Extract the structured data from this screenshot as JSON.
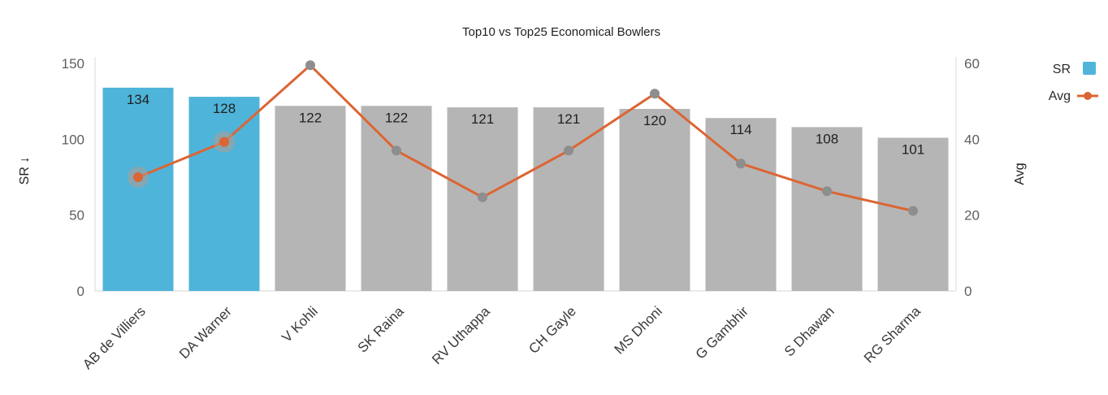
{
  "chart_data": {
    "type": "bar",
    "title": "Top10 vs Top25 Economical Bowlers",
    "categories": [
      "AB de Villiers",
      "DA Warner",
      "V Kohli",
      "SK Raina",
      "RV Uthappa",
      "CH Gayle",
      "MS Dhoni",
      "G Gambhir",
      "S Dhawan",
      "RG Sharma"
    ],
    "series": [
      {
        "name": "SR",
        "kind": "bar",
        "axis": "left",
        "values": [
          134,
          128,
          122,
          122,
          121,
          121,
          120,
          114,
          108,
          101
        ],
        "data_labels": [
          "134",
          "128",
          "122",
          "122",
          "121",
          "121",
          "120",
          "114",
          "108",
          "101"
        ],
        "highlighted": [
          true,
          true,
          false,
          false,
          false,
          false,
          false,
          false,
          false,
          false
        ]
      },
      {
        "name": "Avg",
        "kind": "line",
        "axis": "right",
        "values": [
          30,
          39.3,
          59.5,
          37,
          24.7,
          37,
          52,
          33.6,
          26.3,
          21.1
        ],
        "highlighted": [
          true,
          true,
          false,
          false,
          false,
          false,
          false,
          false,
          false,
          false
        ]
      }
    ],
    "ylabel_left": "SR ↓",
    "ylabel_right": "Avg",
    "ylim_left": [
      0,
      150
    ],
    "ylim_right": [
      0,
      60
    ],
    "yticks_left": [
      0,
      50,
      100,
      150
    ],
    "yticks_right": [
      0,
      20,
      40,
      60
    ],
    "legend": {
      "placement": "top-right",
      "items": [
        "SR",
        "Avg"
      ]
    },
    "grid": false,
    "colors": {
      "bar_highlight": "#4fb4d9",
      "bar_default": "#b5b5b5",
      "line": "#dc6534",
      "marker_default": "#8e8e8e",
      "marker_highlight": "#dc6534",
      "marker_halo": "#b59a90"
    }
  }
}
